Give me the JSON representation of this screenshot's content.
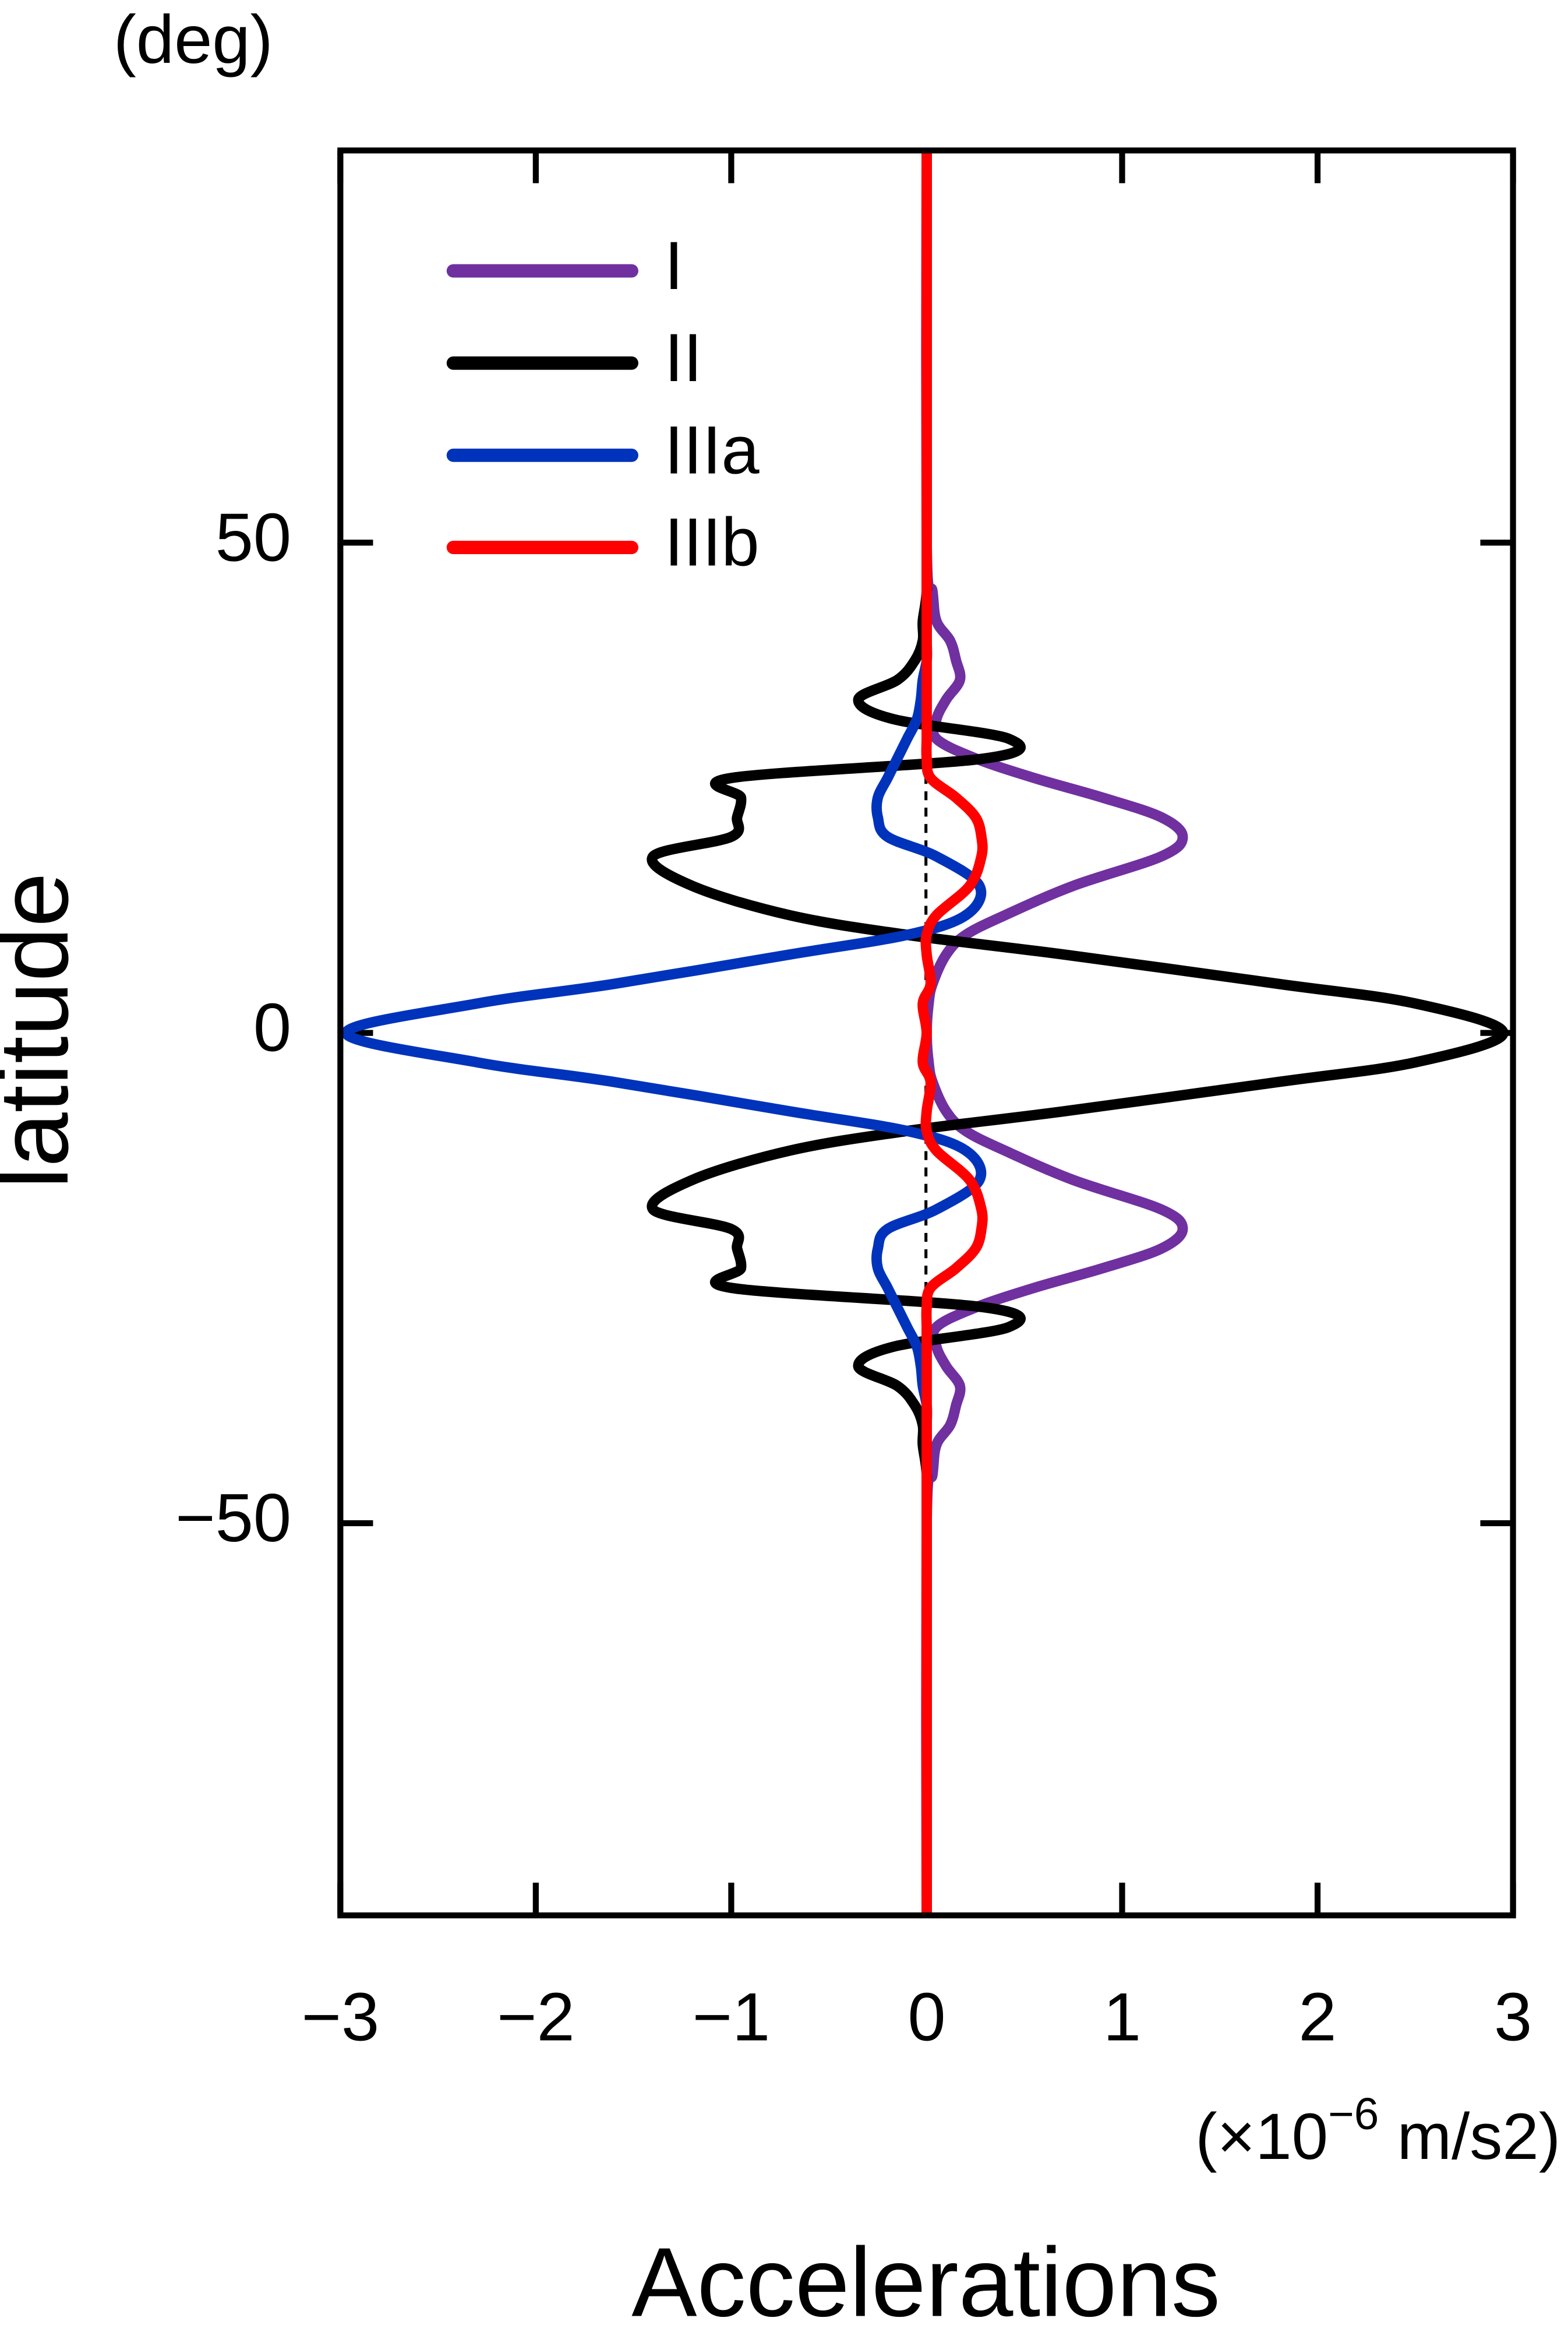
{
  "chart_data": {
    "type": "line",
    "orientation": "vertical",
    "y_unit": "(deg)",
    "y_label": "latitude",
    "x_label": "Accelerations",
    "x_unit": {
      "base": "(×10",
      "exponent": "−6",
      "rest": " m/s2)"
    },
    "xlim": [
      -3,
      3
    ],
    "xticks": [
      {
        "value": -3,
        "label": "−3"
      },
      {
        "value": -2,
        "label": "−2"
      },
      {
        "value": -1,
        "label": "−1"
      },
      0,
      1,
      2,
      3
    ],
    "ylim": [
      -90,
      90
    ],
    "yticks": [
      {
        "value": -50,
        "label": "−50"
      },
      0,
      50
    ],
    "legend": "upper left",
    "y": [
      -90,
      -50,
      -45,
      -42,
      -40,
      -38,
      -36,
      -34,
      -32,
      -30,
      -28,
      -26,
      -24,
      -22,
      -20,
      -18,
      -15,
      -12,
      -10,
      -8,
      -5,
      -3,
      0,
      3,
      5,
      8,
      10,
      12,
      15,
      18,
      20,
      22,
      24,
      26,
      28,
      30,
      32,
      34,
      36,
      38,
      40,
      42,
      45,
      50,
      90
    ],
    "series": [
      {
        "name": "I",
        "color": "#7030a0",
        "values": [
          0,
          0,
          0.03,
          0.05,
          0.12,
          0.15,
          0.17,
          0.1,
          0.05,
          0.05,
          0.25,
          0.55,
          0.9,
          1.2,
          1.31,
          1.2,
          0.75,
          0.4,
          0.2,
          0.1,
          0.03,
          0.01,
          0,
          0.01,
          0.03,
          0.1,
          0.2,
          0.4,
          0.75,
          1.2,
          1.31,
          1.2,
          0.9,
          0.55,
          0.25,
          0.05,
          0.05,
          0.1,
          0.17,
          0.15,
          0.12,
          0.05,
          0.03,
          0,
          0
        ]
      },
      {
        "name": "II",
        "color": "#000000",
        "values": [
          0,
          0,
          0,
          -0.02,
          -0.02,
          -0.06,
          -0.15,
          -0.35,
          -0.17,
          0.42,
          0.3,
          -1.0,
          -0.95,
          -0.97,
          -1.0,
          -1.4,
          -1.2,
          -0.7,
          -0.1,
          0.7,
          1.8,
          2.5,
          2.95,
          2.5,
          1.8,
          0.7,
          -0.1,
          -0.7,
          -1.2,
          -1.4,
          -1.0,
          -0.97,
          -0.95,
          -1.0,
          0.3,
          0.42,
          -0.17,
          -0.35,
          -0.15,
          -0.06,
          -0.02,
          -0.02,
          0,
          0,
          0
        ]
      },
      {
        "name": "IIIa",
        "color": "#0033bb",
        "values": [
          0,
          0,
          0,
          0,
          0,
          0,
          -0.02,
          -0.03,
          -0.05,
          -0.1,
          -0.15,
          -0.2,
          -0.25,
          -0.25,
          -0.2,
          0.05,
          0.27,
          0.2,
          -0.1,
          -0.7,
          -1.6,
          -2.3,
          -2.97,
          -2.3,
          -1.6,
          -0.7,
          -0.1,
          0.2,
          0.27,
          0.05,
          -0.2,
          -0.25,
          -0.25,
          -0.2,
          -0.15,
          -0.1,
          -0.05,
          -0.03,
          -0.02,
          0,
          0,
          0,
          0,
          0,
          0
        ]
      },
      {
        "name": "IIIb",
        "color": "#ff0000",
        "values": [
          0,
          0,
          0,
          0,
          0,
          0,
          0,
          0,
          0,
          0,
          0,
          0.02,
          0.15,
          0.25,
          0.28,
          0.28,
          0.22,
          0.05,
          0,
          0,
          0.02,
          -0.02,
          0,
          -0.02,
          0.02,
          0,
          0,
          0.05,
          0.22,
          0.28,
          0.28,
          0.25,
          0.15,
          0.02,
          0,
          0,
          0,
          0,
          0,
          0,
          0,
          0,
          0,
          0,
          0
        ]
      }
    ]
  }
}
